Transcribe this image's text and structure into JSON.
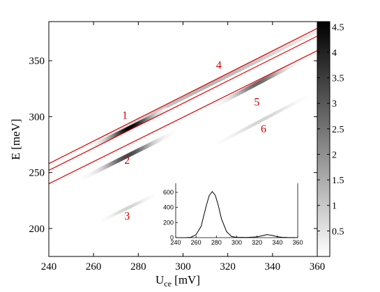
{
  "chart_data": [
    {
      "type": "heatmap",
      "xlabel_main": "U",
      "xlabel_sub": "ce",
      "xlabel_unit": " [mV]",
      "ylabel": "E [meV]",
      "xlim": [
        240,
        360
      ],
      "ylim": [
        175,
        385
      ],
      "xticks": [
        240,
        260,
        280,
        300,
        320,
        340,
        360
      ],
      "yticks": [
        200,
        250,
        300,
        350
      ],
      "colorbar": {
        "range": [
          0,
          4.6
        ],
        "ticks": [
          0.5,
          1,
          1.5,
          2,
          2.5,
          3,
          3.5,
          4,
          4.5
        ],
        "colormap": "gray-inverted"
      },
      "lines": [
        {
          "x": [
            240,
            360
          ],
          "y": [
            258,
            379
          ]
        },
        {
          "x": [
            240,
            360
          ],
          "y": [
            252,
            372
          ]
        },
        {
          "x": [
            240,
            360
          ],
          "y": [
            240,
            359
          ]
        }
      ],
      "bands": [
        {
          "id": 4,
          "x": [
            262,
            360
          ],
          "intercept": 17,
          "slope": 1.0,
          "width": 4,
          "peak_x": 310,
          "peak": 1.3,
          "spread_x": 40
        },
        {
          "id": 1,
          "x": [
            258,
            292
          ],
          "intercept": 14,
          "slope": 1.0,
          "width": 4,
          "peak_x": 276,
          "peak": 4.5,
          "spread_x": 9
        },
        {
          "id": 2,
          "x": [
            248,
            300
          ],
          "intercept": -10,
          "slope": 1.0,
          "width": 4,
          "peak_x": 275,
          "peak": 3.3,
          "spread_x": 10
        },
        {
          "id": 5,
          "x": [
            290,
            360
          ],
          "intercept": -20,
          "slope": 1.05,
          "width": 4,
          "peak_x": 333,
          "peak": 2.7,
          "spread_x": 10
        },
        {
          "id": 3,
          "x": [
            262,
            290
          ],
          "intercept": -43,
          "slope": 0.95,
          "width": 3,
          "peak_x": 275,
          "peak": 0.8,
          "spread_x": 7
        },
        {
          "id": 6,
          "x": [
            300,
            360
          ],
          "intercept": -55,
          "slope": 1.05,
          "width": 3,
          "peak_x": 335,
          "peak": 0.8,
          "spread_x": 12
        }
      ],
      "annotations": [
        {
          "text": "1",
          "x": 274,
          "y": 298
        },
        {
          "text": "2",
          "x": 275,
          "y": 258
        },
        {
          "text": "3",
          "x": 275,
          "y": 208
        },
        {
          "text": "4",
          "x": 316,
          "y": 343
        },
        {
          "text": "5",
          "x": 333,
          "y": 310
        },
        {
          "text": "6",
          "x": 336,
          "y": 286
        }
      ],
      "annotation_color": "#d00000",
      "line_color": "#e00000"
    },
    {
      "type": "line",
      "role": "inset",
      "xlim": [
        240,
        360
      ],
      "ylim": [
        0,
        720
      ],
      "xticks": [
        240,
        260,
        280,
        300,
        320,
        340,
        360
      ],
      "yticks": [
        0,
        200,
        400,
        600
      ],
      "series": [
        {
          "x": [
            240,
            250,
            255,
            260,
            265,
            270,
            273,
            276,
            279,
            282,
            285,
            290,
            295,
            300,
            310,
            320,
            325,
            330,
            335,
            340,
            345,
            350,
            360
          ],
          "y": [
            0,
            0,
            5,
            40,
            150,
            420,
            560,
            610,
            560,
            420,
            250,
            80,
            15,
            5,
            2,
            10,
            25,
            40,
            30,
            12,
            5,
            2,
            0
          ]
        }
      ]
    }
  ]
}
